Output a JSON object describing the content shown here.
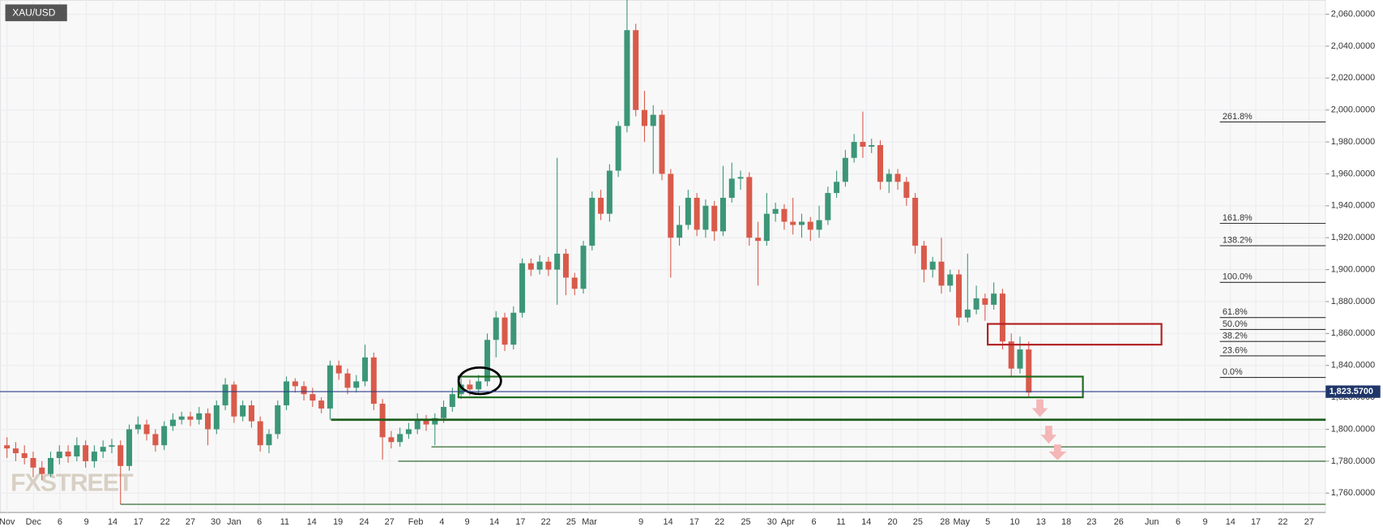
{
  "chart_data": {
    "type": "candlestick",
    "title": "XAU/USD",
    "logo": "FXSTREET",
    "up_color": "#3c9677",
    "down_color": "#d95a4a",
    "grid": true,
    "xlim": [
      -0.8,
      151
    ],
    "ylim": [
      1747.9,
      2068.9
    ],
    "yticks": [
      {
        "value": 1760,
        "label": "1,760.0000"
      },
      {
        "value": 1780,
        "label": "1,780.0000"
      },
      {
        "value": 1800,
        "label": "1,800.0000"
      },
      {
        "value": 1820,
        "label": "1,820.0000"
      },
      {
        "value": 1840,
        "label": "1,840.0000"
      },
      {
        "value": 1860,
        "label": "1,860.0000"
      },
      {
        "value": 1880,
        "label": "1,880.0000"
      },
      {
        "value": 1900,
        "label": "1,900.0000"
      },
      {
        "value": 1920,
        "label": "1,920.0000"
      },
      {
        "value": 1940,
        "label": "1,940.0000"
      },
      {
        "value": 1960,
        "label": "1,960.0000"
      },
      {
        "value": 1980,
        "label": "1,980.0000"
      },
      {
        "value": 2000,
        "label": "2,000.0000"
      },
      {
        "value": 2020,
        "label": "2,020.0000"
      },
      {
        "value": 2040,
        "label": "2,040.0000"
      },
      {
        "value": 2060,
        "label": "2,060.0000"
      }
    ],
    "xticks": [
      {
        "value": 0,
        "label": "Nov"
      },
      {
        "value": 3.03,
        "label": "Dec"
      },
      {
        "value": 6.06,
        "label": "6"
      },
      {
        "value": 9.09,
        "label": "9"
      },
      {
        "value": 12.1,
        "label": "14"
      },
      {
        "value": 15.05,
        "label": "17"
      },
      {
        "value": 18.1,
        "label": "22"
      },
      {
        "value": 21,
        "label": "27"
      },
      {
        "value": 23.9,
        "label": "30"
      },
      {
        "value": 26,
        "label": "Jan"
      },
      {
        "value": 28.9,
        "label": "6"
      },
      {
        "value": 31.8,
        "label": "11"
      },
      {
        "value": 34.9,
        "label": "14"
      },
      {
        "value": 37.9,
        "label": "19"
      },
      {
        "value": 40.9,
        "label": "24"
      },
      {
        "value": 43.8,
        "label": "27"
      },
      {
        "value": 46.8,
        "label": "Feb"
      },
      {
        "value": 49.8,
        "label": "4"
      },
      {
        "value": 52.7,
        "label": "9"
      },
      {
        "value": 55.8,
        "label": "14"
      },
      {
        "value": 58.8,
        "label": "17"
      },
      {
        "value": 61.7,
        "label": "22"
      },
      {
        "value": 64.6,
        "label": "25"
      },
      {
        "value": 66.7,
        "label": "Mar"
      },
      {
        "value": 72.6,
        "label": "9"
      },
      {
        "value": 75.7,
        "label": "14"
      },
      {
        "value": 78.7,
        "label": "17"
      },
      {
        "value": 81.6,
        "label": "22"
      },
      {
        "value": 84.6,
        "label": "25"
      },
      {
        "value": 87.6,
        "label": "30"
      },
      {
        "value": 89.4,
        "label": "Apr"
      },
      {
        "value": 92.4,
        "label": "6"
      },
      {
        "value": 95.5,
        "label": "11"
      },
      {
        "value": 98.4,
        "label": "14"
      },
      {
        "value": 101.4,
        "label": "20"
      },
      {
        "value": 104.3,
        "label": "25"
      },
      {
        "value": 107.4,
        "label": "28"
      },
      {
        "value": 109.3,
        "label": "May"
      },
      {
        "value": 112.3,
        "label": "5"
      },
      {
        "value": 115.4,
        "label": "10"
      },
      {
        "value": 118.4,
        "label": "13"
      },
      {
        "value": 121.3,
        "label": "18"
      },
      {
        "value": 124.2,
        "label": "23"
      },
      {
        "value": 127.3,
        "label": "26"
      },
      {
        "value": 131.1,
        "label": "Jun"
      },
      {
        "value": 134.1,
        "label": "6"
      },
      {
        "value": 137.2,
        "label": "9"
      },
      {
        "value": 140.1,
        "label": "14"
      },
      {
        "value": 143,
        "label": "17"
      },
      {
        "value": 146.1,
        "label": "22"
      },
      {
        "value": 149.1,
        "label": "27"
      }
    ],
    "x": [
      0,
      1,
      2,
      3,
      4,
      5,
      6,
      7,
      8,
      9,
      10,
      11,
      12,
      13,
      14,
      15,
      16,
      17,
      18,
      19,
      20,
      21,
      22,
      23,
      24,
      25,
      26,
      27,
      28,
      29,
      30,
      31,
      32,
      33,
      34,
      35,
      36,
      37,
      38,
      39,
      40,
      41,
      42,
      43,
      44,
      45,
      46,
      47,
      48,
      49,
      50,
      51,
      52,
      53,
      54,
      55,
      56,
      57,
      58,
      59,
      60,
      61,
      62,
      63,
      64,
      65,
      66,
      67,
      68,
      69,
      70,
      71,
      72,
      73,
      74,
      75,
      76,
      77,
      78,
      79,
      80,
      81,
      82,
      83,
      84,
      85,
      86,
      87,
      88,
      89,
      90,
      91,
      92,
      93,
      94,
      95,
      96,
      97,
      98,
      99,
      100,
      101,
      102,
      103,
      104,
      105,
      106,
      107,
      108,
      109,
      110,
      111,
      112,
      113,
      114,
      115,
      116,
      117
    ],
    "ohlc": [
      [
        1790,
        1795,
        1782,
        1788
      ],
      [
        1788,
        1792,
        1780,
        1785
      ],
      [
        1785,
        1790,
        1778,
        1782
      ],
      [
        1782,
        1786,
        1770,
        1776
      ],
      [
        1776,
        1780,
        1768,
        1772
      ],
      [
        1772,
        1786,
        1770,
        1782
      ],
      [
        1782,
        1790,
        1778,
        1786
      ],
      [
        1786,
        1790,
        1779,
        1783
      ],
      [
        1783,
        1795,
        1780,
        1790
      ],
      [
        1790,
        1793,
        1776,
        1780
      ],
      [
        1780,
        1790,
        1776,
        1786
      ],
      [
        1786,
        1793,
        1782,
        1789
      ],
      [
        1789,
        1794,
        1785,
        1790
      ],
      [
        1790,
        1793,
        1753,
        1777
      ],
      [
        1777,
        1803,
        1774,
        1800
      ],
      [
        1800,
        1808,
        1797,
        1803
      ],
      [
        1803,
        1806,
        1793,
        1797
      ],
      [
        1797,
        1800,
        1786,
        1790
      ],
      [
        1790,
        1805,
        1787,
        1802
      ],
      [
        1802,
        1810,
        1799,
        1806
      ],
      [
        1806,
        1811,
        1803,
        1808
      ],
      [
        1808,
        1811,
        1802,
        1806
      ],
      [
        1806,
        1814,
        1803,
        1810
      ],
      [
        1810,
        1813,
        1790,
        1800
      ],
      [
        1800,
        1818,
        1797,
        1815
      ],
      [
        1815,
        1832,
        1812,
        1828
      ],
      [
        1828,
        1830,
        1804,
        1808
      ],
      [
        1808,
        1818,
        1805,
        1815
      ],
      [
        1815,
        1818,
        1801,
        1805
      ],
      [
        1805,
        1808,
        1786,
        1790
      ],
      [
        1790,
        1800,
        1785,
        1797
      ],
      [
        1797,
        1818,
        1794,
        1815
      ],
      [
        1815,
        1833,
        1812,
        1830
      ],
      [
        1830,
        1832,
        1823,
        1827
      ],
      [
        1827,
        1830,
        1818,
        1822
      ],
      [
        1822,
        1826,
        1814,
        1818
      ],
      [
        1818,
        1820,
        1810,
        1813
      ],
      [
        1813,
        1843,
        1806,
        1840
      ],
      [
        1840,
        1843,
        1831,
        1835
      ],
      [
        1835,
        1838,
        1822,
        1826
      ],
      [
        1826,
        1834,
        1823,
        1830
      ],
      [
        1830,
        1853,
        1827,
        1845
      ],
      [
        1845,
        1848,
        1812,
        1816
      ],
      [
        1816,
        1819,
        1781,
        1795
      ],
      [
        1795,
        1799,
        1788,
        1792
      ],
      [
        1792,
        1801,
        1789,
        1797
      ],
      [
        1797,
        1804,
        1794,
        1800
      ],
      [
        1800,
        1810,
        1797,
        1806
      ],
      [
        1806,
        1809,
        1799,
        1803
      ],
      [
        1803,
        1810,
        1790,
        1807
      ],
      [
        1807,
        1818,
        1804,
        1814
      ],
      [
        1814,
        1826,
        1811,
        1822
      ],
      [
        1822,
        1832,
        1819,
        1828
      ],
      [
        1828,
        1831,
        1821,
        1825
      ],
      [
        1825,
        1834,
        1822,
        1830
      ],
      [
        1830,
        1860,
        1827,
        1856
      ],
      [
        1856,
        1874,
        1845,
        1870
      ],
      [
        1870,
        1873,
        1849,
        1853
      ],
      [
        1853,
        1877,
        1850,
        1873
      ],
      [
        1873,
        1907,
        1870,
        1904
      ],
      [
        1904,
        1907,
        1896,
        1900
      ],
      [
        1900,
        1909,
        1897,
        1905
      ],
      [
        1905,
        1908,
        1896,
        1900
      ],
      [
        1900,
        1970,
        1878,
        1910
      ],
      [
        1910,
        1913,
        1884,
        1895
      ],
      [
        1895,
        1898,
        1884,
        1888
      ],
      [
        1888,
        1918,
        1885,
        1915
      ],
      [
        1915,
        1949,
        1912,
        1945
      ],
      [
        1945,
        1950,
        1931,
        1935
      ],
      [
        1935,
        1966,
        1930,
        1962
      ],
      [
        1962,
        1993,
        1958,
        1990
      ],
      [
        1990,
        2070,
        1986,
        2050
      ],
      [
        2050,
        2054,
        1996,
        2000
      ],
      [
        2000,
        2012,
        1980,
        1990
      ],
      [
        1990,
        2003,
        1960,
        1997
      ],
      [
        1997,
        2000,
        1956,
        1960
      ],
      [
        1960,
        1963,
        1895,
        1920
      ],
      [
        1920,
        1940,
        1915,
        1928
      ],
      [
        1928,
        1950,
        1925,
        1945
      ],
      [
        1945,
        1948,
        1921,
        1925
      ],
      [
        1925,
        1944,
        1920,
        1940
      ],
      [
        1940,
        1943,
        1918,
        1924
      ],
      [
        1924,
        1965,
        1921,
        1945
      ],
      [
        1945,
        1967,
        1942,
        1957
      ],
      [
        1957,
        1962,
        1950,
        1958
      ],
      [
        1958,
        1961,
        1915,
        1920
      ],
      [
        1920,
        1930,
        1890,
        1918
      ],
      [
        1918,
        1948,
        1915,
        1935
      ],
      [
        1935,
        1942,
        1930,
        1938
      ],
      [
        1938,
        1941,
        1925,
        1930
      ],
      [
        1930,
        1945,
        1922,
        1928
      ],
      [
        1928,
        1935,
        1920,
        1930
      ],
      [
        1930,
        1933,
        1918,
        1925
      ],
      [
        1925,
        1940,
        1920,
        1931
      ],
      [
        1931,
        1952,
        1928,
        1948
      ],
      [
        1948,
        1962,
        1945,
        1955
      ],
      [
        1955,
        1975,
        1952,
        1970
      ],
      [
        1970,
        1985,
        1967,
        1980
      ],
      [
        1980,
        1999,
        1970,
        1977
      ],
      [
        1977,
        1982,
        1973,
        1978
      ],
      [
        1978,
        1981,
        1950,
        1955
      ],
      [
        1955,
        1963,
        1948,
        1960
      ],
      [
        1960,
        1963,
        1950,
        1955
      ],
      [
        1955,
        1958,
        1940,
        1945
      ],
      [
        1945,
        1948,
        1910,
        1915
      ],
      [
        1915,
        1918,
        1892,
        1900
      ],
      [
        1900,
        1908,
        1895,
        1905
      ],
      [
        1905,
        1920,
        1885,
        1890
      ],
      [
        1890,
        1900,
        1886,
        1897
      ],
      [
        1897,
        1900,
        1865,
        1870
      ],
      [
        1870,
        1910,
        1867,
        1875
      ],
      [
        1875,
        1890,
        1872,
        1882
      ],
      [
        1882,
        1885,
        1868,
        1878
      ],
      [
        1878,
        1892,
        1875,
        1885
      ],
      [
        1885,
        1888,
        1850,
        1855
      ],
      [
        1855,
        1860,
        1833,
        1838
      ],
      [
        1838,
        1858,
        1835,
        1850
      ],
      [
        1850,
        1855,
        1820,
        1823
      ]
    ],
    "last_price": {
      "value": 1823.57,
      "label": "1,823.5700"
    },
    "fib_levels": [
      {
        "label": "261.8%",
        "value": 1992.5
      },
      {
        "label": "161.8%",
        "value": 1929
      },
      {
        "label": "138.2%",
        "value": 1915
      },
      {
        "label": "100.0%",
        "value": 1892
      },
      {
        "label": "61.8%",
        "value": 1870
      },
      {
        "label": "50.0%",
        "value": 1862.5
      },
      {
        "label": "38.2%",
        "value": 1855
      },
      {
        "label": "23.6%",
        "value": 1846
      },
      {
        "label": "0.0%",
        "value": 1832.5
      }
    ],
    "support_lines": [
      {
        "value": 1806,
        "from": 37.1,
        "width": 2.5
      },
      {
        "value": 1789,
        "from": 48.6,
        "width": 1
      },
      {
        "value": 1780,
        "from": 44.8,
        "width": 1
      },
      {
        "value": 1753,
        "from": 13,
        "width": 1
      }
    ],
    "zones": [
      {
        "from": 51.7,
        "to": 123.2,
        "low": 1820,
        "high": 1833,
        "color": "#1f6b1f"
      },
      {
        "from": 112.3,
        "to": 132.2,
        "low": 1853,
        "high": 1866,
        "color": "#b22222"
      }
    ]
  }
}
